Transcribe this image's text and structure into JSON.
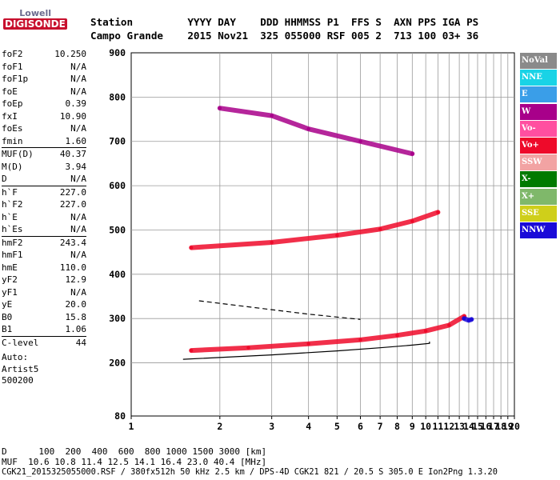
{
  "logo": {
    "line1": "Lowell",
    "line2": "DIGISONDE"
  },
  "header": {
    "row1": "Station         YYYY DAY    DDD HHMMSS P1  FFS S  AXN PPS IGA PS",
    "row2": "Campo Grande    2015 Nov21  325 055000 RSF 005 2  713 100 03+ 36"
  },
  "params": [
    {
      "name": "foF2",
      "value": "10.250"
    },
    {
      "name": "foF1",
      "value": "N/A"
    },
    {
      "name": "foF1p",
      "value": "N/A"
    },
    {
      "name": "foE",
      "value": "N/A"
    },
    {
      "name": "foEp",
      "value": "0.39"
    },
    {
      "name": "fxI",
      "value": "10.90"
    },
    {
      "name": "foEs",
      "value": "N/A"
    },
    {
      "name": "fmin",
      "value": "1.60",
      "sep_after": true
    },
    {
      "name": "MUF(D)",
      "value": "40.37"
    },
    {
      "name": "M(D)",
      "value": "3.94"
    },
    {
      "name": "D",
      "value": "N/A",
      "sep_after": true
    },
    {
      "name": "h`F",
      "value": "227.0"
    },
    {
      "name": "h`F2",
      "value": "227.0"
    },
    {
      "name": "h`E",
      "value": "N/A"
    },
    {
      "name": "h`Es",
      "value": "N/A",
      "sep_after": true
    },
    {
      "name": "hmF2",
      "value": "243.4"
    },
    {
      "name": "hmF1",
      "value": "N/A"
    },
    {
      "name": "hmE",
      "value": "110.0"
    },
    {
      "name": "yF2",
      "value": "12.9"
    },
    {
      "name": "yF1",
      "value": "N/A"
    },
    {
      "name": "yE",
      "value": "20.0"
    },
    {
      "name": "B0",
      "value": "15.8"
    },
    {
      "name": "B1",
      "value": "1.06",
      "sep_after": true
    },
    {
      "name": "C-level",
      "value": "44",
      "sep_after": true
    }
  ],
  "auto_lines": [
    "Auto:",
    "Artist5",
    "500200"
  ],
  "legend": [
    {
      "label": "NoVal",
      "color": "#8a8a8a"
    },
    {
      "label": "NNE",
      "color": "#19d3e6"
    },
    {
      "label": "E",
      "color": "#3a9ee8"
    },
    {
      "label": "W",
      "color": "#a8008a"
    },
    {
      "label": "Vo-",
      "color": "#ff4fa0"
    },
    {
      "label": "Vo+",
      "color": "#ee0a2a"
    },
    {
      "label": "SSW",
      "color": "#f2a3a3"
    },
    {
      "label": "X-",
      "color": "#007a00"
    },
    {
      "label": "X+",
      "color": "#7fb86a"
    },
    {
      "label": "SSE",
      "color": "#cfcf1a"
    },
    {
      "label": "NNW",
      "color": "#1a0ad8"
    }
  ],
  "footer": {
    "distance_line": "D      100  200  400  600  800 1000 1500 3000 [km]",
    "muf_line": "MUF  10.6 10.8 11.4 12.5 14.1 16.4 23.0 40.4 [MHz]",
    "info_line": "CGK21_2015325055000.RSF / 380fx512h 50 kHz 2.5 km / DPS-4D CGK21 821 / 20.5 S 305.0 E Ion2Png 1.3.20"
  },
  "chart_data": {
    "type": "scatter",
    "title": "",
    "xlabel": "",
    "ylabel": "",
    "x_scale": "log",
    "xlim": [
      1,
      20
    ],
    "ylim": [
      80,
      900
    ],
    "x_ticks": [
      1,
      2,
      3,
      4,
      5,
      6,
      7,
      8,
      9,
      10,
      11,
      12,
      13,
      14,
      15,
      16,
      17,
      18,
      19,
      20
    ],
    "y_ticks": [
      80,
      200,
      300,
      400,
      500,
      600,
      700,
      800,
      900
    ],
    "grid": true,
    "series": [
      {
        "name": "Vo+",
        "color": "#ee0a2a",
        "trace": [
          [
            1.6,
            228
          ],
          [
            2.5,
            234
          ],
          [
            4,
            243
          ],
          [
            6,
            252
          ],
          [
            8,
            262
          ],
          [
            10,
            272
          ],
          [
            12,
            285
          ],
          [
            13.5,
            305
          ]
        ]
      },
      {
        "name": "Vo+",
        "color": "#ee0a2a",
        "trace": [
          [
            1.6,
            460
          ],
          [
            3,
            472
          ],
          [
            5,
            488
          ],
          [
            7,
            502
          ],
          [
            9,
            520
          ],
          [
            11,
            540
          ]
        ]
      },
      {
        "name": "W",
        "color": "#a8008a",
        "trace": [
          [
            2,
            775
          ],
          [
            3,
            758
          ],
          [
            4,
            728
          ],
          [
            6,
            700
          ],
          [
            9,
            672
          ]
        ]
      },
      {
        "name": "NNW",
        "color": "#1a0ad8",
        "trace": [
          [
            13.5,
            300
          ],
          [
            14,
            296
          ],
          [
            14.3,
            298
          ]
        ]
      }
    ],
    "fit_lines": [
      {
        "style": "solid",
        "trace": [
          [
            1.5,
            208
          ],
          [
            3,
            218
          ],
          [
            5,
            227
          ],
          [
            7,
            234
          ],
          [
            9,
            240
          ],
          [
            10.3,
            244
          ],
          [
            10.3,
            248
          ]
        ]
      },
      {
        "style": "dashed",
        "trace": [
          [
            1.7,
            340
          ],
          [
            3,
            320
          ],
          [
            4,
            310
          ],
          [
            6,
            298
          ]
        ]
      }
    ]
  }
}
